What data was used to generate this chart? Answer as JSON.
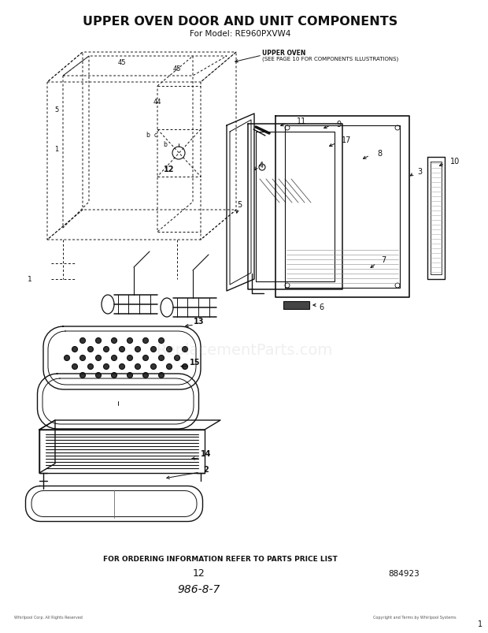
{
  "title": "UPPER OVEN DOOR AND UNIT COMPONENTS",
  "subtitle": "For Model: RE960PXVW4",
  "upper_oven_label1": "UPPER OVEN",
  "upper_oven_label2": "(SEE PAGE 10 FOR COMPONENTS ILLUSTRATIONS)",
  "bottom_text": "FOR ORDERING INFORMATION REFER TO PARTS PRICE LIST",
  "part_number": "12",
  "model_code": "986-8-7",
  "catalog_number": "884923",
  "bg_color": "#ffffff",
  "lc": "#111111",
  "figsize": [
    6.2,
    8.04
  ],
  "dpi": 100
}
